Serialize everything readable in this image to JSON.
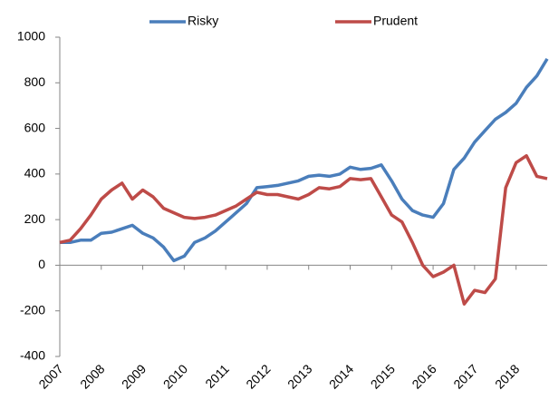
{
  "chart_data": {
    "type": "line",
    "x": [
      2007,
      2007.25,
      2007.5,
      2007.75,
      2008,
      2008.25,
      2008.5,
      2008.75,
      2009,
      2009.25,
      2009.5,
      2009.75,
      2010,
      2010.25,
      2010.5,
      2010.75,
      2011,
      2011.25,
      2011.5,
      2011.75,
      2012,
      2012.25,
      2012.5,
      2012.75,
      2013,
      2013.25,
      2013.5,
      2013.75,
      2014,
      2014.25,
      2014.5,
      2014.75,
      2015,
      2015.25,
      2015.5,
      2015.75,
      2016,
      2016.25,
      2016.5,
      2016.75,
      2017,
      2017.25,
      2017.5,
      2017.75,
      2018,
      2018.25,
      2018.5,
      2018.75
    ],
    "series": [
      {
        "name": "Risky",
        "color": "#4a7ebb",
        "values": [
          100,
          100,
          110,
          110,
          140,
          145,
          160,
          175,
          140,
          120,
          80,
          20,
          40,
          100,
          120,
          150,
          190,
          230,
          270,
          340,
          345,
          350,
          360,
          370,
          390,
          395,
          390,
          400,
          430,
          420,
          425,
          440,
          370,
          290,
          240,
          220,
          210,
          270,
          420,
          470,
          540,
          590,
          640,
          670,
          710,
          780,
          830,
          905
        ]
      },
      {
        "name": "Prudent",
        "color": "#be4b48",
        "values": [
          100,
          110,
          160,
          220,
          290,
          330,
          360,
          290,
          330,
          300,
          250,
          230,
          210,
          205,
          210,
          220,
          240,
          260,
          290,
          320,
          310,
          310,
          300,
          290,
          310,
          340,
          335,
          345,
          380,
          375,
          380,
          300,
          220,
          190,
          100,
          0,
          -50,
          -30,
          0,
          -170,
          -110,
          -120,
          -60,
          340,
          450,
          480,
          390,
          380
        ]
      }
    ],
    "xlim": [
      2007,
      2018.75
    ],
    "xticks": [
      2007,
      2008,
      2009,
      2010,
      2011,
      2012,
      2013,
      2014,
      2015,
      2016,
      2017,
      2018
    ],
    "ylim": [
      -400,
      1000
    ],
    "yticks": [
      -400,
      -200,
      0,
      200,
      400,
      600,
      800,
      1000
    ],
    "grid": false,
    "legend": "top"
  }
}
